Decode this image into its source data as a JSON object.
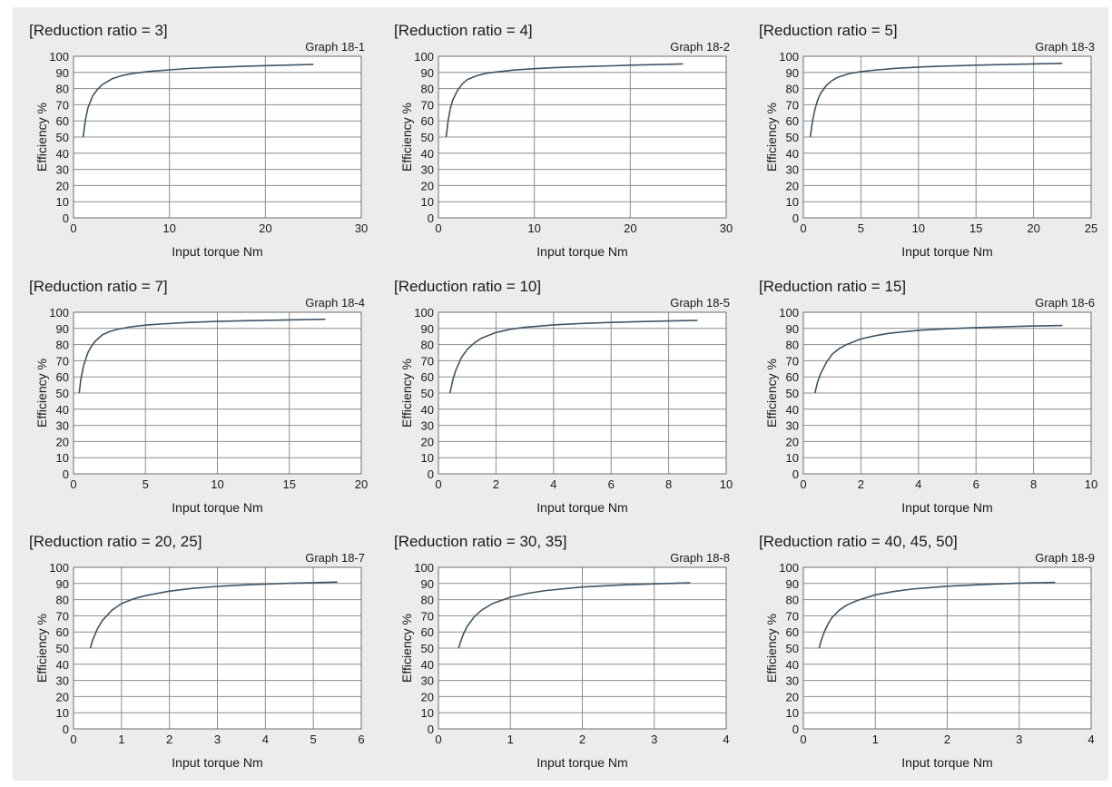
{
  "chart_data": [
    {
      "type": "line",
      "title": "[Reduction ratio = 3]",
      "graph_label": "Graph 18-1",
      "xlabel": "Input torque Nm",
      "ylabel": "Efficiency %",
      "xlim": [
        0,
        30
      ],
      "ylim": [
        0,
        100
      ],
      "x_ticks": [
        0,
        10,
        20,
        30
      ],
      "y_ticks": [
        0,
        10,
        20,
        30,
        40,
        50,
        60,
        70,
        80,
        90,
        100
      ],
      "grid": true,
      "series": [
        {
          "color": "#3e5566",
          "x": [
            1,
            1.25,
            1.5,
            2,
            2.5,
            3,
            4,
            5,
            6,
            7,
            8,
            10,
            12,
            15,
            18,
            20,
            22,
            25
          ],
          "y": [
            50,
            61,
            68,
            75.5,
            79.5,
            82.5,
            86,
            88,
            89.2,
            90,
            90.7,
            91.6,
            92.4,
            93.2,
            93.9,
            94.2,
            94.5,
            95
          ]
        }
      ]
    },
    {
      "type": "line",
      "title": "[Reduction ratio = 4]",
      "graph_label": "Graph 18-2",
      "xlabel": "Input torque Nm",
      "ylabel": "Efficiency %",
      "xlim": [
        0,
        30
      ],
      "ylim": [
        0,
        100
      ],
      "x_ticks": [
        0,
        10,
        20,
        30
      ],
      "y_ticks": [
        0,
        10,
        20,
        30,
        40,
        50,
        60,
        70,
        80,
        90,
        100
      ],
      "grid": true,
      "series": [
        {
          "color": "#3e5566",
          "x": [
            0.8,
            1,
            1.25,
            1.5,
            2,
            2.5,
            3,
            4,
            5,
            6,
            8,
            10,
            12,
            15,
            18,
            20,
            22,
            25.5
          ],
          "y": [
            50,
            60,
            68,
            73,
            79,
            83,
            85.5,
            88,
            89.5,
            90.3,
            91.5,
            92.3,
            92.9,
            93.6,
            94.1,
            94.5,
            94.8,
            95.3
          ]
        }
      ]
    },
    {
      "type": "line",
      "title": "[Reduction ratio = 5]",
      "graph_label": "Graph 18-3",
      "xlabel": "Input torque Nm",
      "ylabel": "Efficiency %",
      "xlim": [
        0,
        25
      ],
      "ylim": [
        0,
        100
      ],
      "x_ticks": [
        0,
        5,
        10,
        15,
        20,
        25
      ],
      "y_ticks": [
        0,
        10,
        20,
        30,
        40,
        50,
        60,
        70,
        80,
        90,
        100
      ],
      "grid": true,
      "series": [
        {
          "color": "#3e5566",
          "x": [
            0.6,
            0.8,
            1,
            1.25,
            1.5,
            2,
            2.5,
            3,
            4,
            5,
            6,
            8,
            10,
            12,
            15,
            18,
            20,
            22.5
          ],
          "y": [
            50,
            60,
            67,
            73,
            77,
            82,
            85,
            87,
            89.3,
            90.5,
            91.3,
            92.5,
            93.3,
            93.9,
            94.5,
            95,
            95.3,
            95.6
          ]
        }
      ]
    },
    {
      "type": "line",
      "title": "[Reduction ratio = 7]",
      "graph_label": "Graph 18-4",
      "xlabel": "Input torque Nm",
      "ylabel": "Efficiency %",
      "xlim": [
        0,
        20
      ],
      "ylim": [
        0,
        100
      ],
      "x_ticks": [
        0,
        5,
        10,
        15,
        20
      ],
      "y_ticks": [
        0,
        10,
        20,
        30,
        40,
        50,
        60,
        70,
        80,
        90,
        100
      ],
      "grid": true,
      "series": [
        {
          "color": "#3e5566",
          "x": [
            0.4,
            0.5,
            0.7,
            1,
            1.25,
            1.5,
            2,
            2.5,
            3,
            4,
            5,
            6,
            8,
            10,
            12,
            15,
            17.5
          ],
          "y": [
            50,
            58,
            67,
            75,
            79,
            82,
            86,
            88,
            89.3,
            91,
            92,
            92.7,
            93.7,
            94.3,
            94.8,
            95.3,
            95.7
          ]
        }
      ]
    },
    {
      "type": "line",
      "title": "[Reduction ratio = 10]",
      "graph_label": "Graph 18-5",
      "xlabel": "Input torque Nm",
      "ylabel": "Efficiency %",
      "xlim": [
        0,
        10
      ],
      "ylim": [
        0,
        100
      ],
      "x_ticks": [
        0,
        2,
        4,
        6,
        8,
        10
      ],
      "y_ticks": [
        0,
        10,
        20,
        30,
        40,
        50,
        60,
        70,
        80,
        90,
        100
      ],
      "grid": true,
      "series": [
        {
          "color": "#3e5566",
          "x": [
            0.4,
            0.5,
            0.6,
            0.8,
            1,
            1.25,
            1.5,
            2,
            2.5,
            3,
            4,
            5,
            6,
            7,
            8,
            9
          ],
          "y": [
            50,
            58,
            64,
            72,
            77,
            81,
            84,
            87.5,
            89.5,
            90.7,
            92.2,
            93.1,
            93.7,
            94.2,
            94.6,
            95
          ]
        }
      ]
    },
    {
      "type": "line",
      "title": "[Reduction ratio = 15]",
      "graph_label": "Graph 18-6",
      "xlabel": "Input torque Nm",
      "ylabel": "Efficiency %",
      "xlim": [
        0,
        10
      ],
      "ylim": [
        0,
        100
      ],
      "x_ticks": [
        0,
        2,
        4,
        6,
        8,
        10
      ],
      "y_ticks": [
        0,
        10,
        20,
        30,
        40,
        50,
        60,
        70,
        80,
        90,
        100
      ],
      "grid": true,
      "series": [
        {
          "color": "#3e5566",
          "x": [
            0.4,
            0.5,
            0.6,
            0.8,
            1,
            1.25,
            1.5,
            2,
            2.5,
            3,
            4,
            5,
            6,
            7,
            8,
            9
          ],
          "y": [
            50,
            57,
            62,
            69,
            74,
            77.5,
            80,
            83.5,
            85.5,
            87,
            88.8,
            89.8,
            90.5,
            91,
            91.5,
            91.8
          ]
        }
      ]
    },
    {
      "type": "line",
      "title": "[Reduction ratio = 20, 25]",
      "graph_label": "Graph 18-7",
      "xlabel": "Input torque Nm",
      "ylabel": "Efficiency %",
      "xlim": [
        0,
        6
      ],
      "ylim": [
        0,
        100
      ],
      "x_ticks": [
        0,
        1,
        2,
        3,
        4,
        5,
        6
      ],
      "y_ticks": [
        0,
        10,
        20,
        30,
        40,
        50,
        60,
        70,
        80,
        90,
        100
      ],
      "grid": true,
      "series": [
        {
          "color": "#3e5566",
          "x": [
            0.35,
            0.4,
            0.5,
            0.6,
            0.8,
            1,
            1.25,
            1.5,
            2,
            2.5,
            3,
            3.5,
            4,
            4.5,
            5,
            5.5
          ],
          "y": [
            50,
            55,
            62,
            67,
            73.5,
            77.5,
            80.5,
            82.5,
            85.3,
            87,
            88.2,
            89,
            89.6,
            90.1,
            90.5,
            90.9
          ]
        }
      ]
    },
    {
      "type": "line",
      "title": "[Reduction ratio = 30, 35]",
      "graph_label": "Graph 18-8",
      "xlabel": "Input torque Nm",
      "ylabel": "Efficiency %",
      "xlim": [
        0,
        4
      ],
      "ylim": [
        0,
        100
      ],
      "x_ticks": [
        0,
        1,
        2,
        3,
        4
      ],
      "y_ticks": [
        0,
        10,
        20,
        30,
        40,
        50,
        60,
        70,
        80,
        90,
        100
      ],
      "grid": true,
      "series": [
        {
          "color": "#3e5566",
          "x": [
            0.28,
            0.3,
            0.35,
            0.4,
            0.5,
            0.6,
            0.75,
            1,
            1.25,
            1.5,
            2,
            2.5,
            3,
            3.5
          ],
          "y": [
            50,
            53,
            59,
            63.5,
            69.5,
            73.5,
            77.5,
            81.5,
            84,
            85.7,
            87.8,
            89,
            89.8,
            90.4
          ]
        }
      ]
    },
    {
      "type": "line",
      "title": "[Reduction ratio = 40, 45, 50]",
      "graph_label": "Graph 18-9",
      "xlabel": "Input torque Nm",
      "ylabel": "Efficiency %",
      "xlim": [
        0,
        4
      ],
      "ylim": [
        0,
        100
      ],
      "x_ticks": [
        0,
        1,
        2,
        3,
        4
      ],
      "y_ticks": [
        0,
        10,
        20,
        30,
        40,
        50,
        60,
        70,
        80,
        90,
        100
      ],
      "grid": true,
      "series": [
        {
          "color": "#3e5566",
          "x": [
            0.22,
            0.25,
            0.3,
            0.35,
            0.4,
            0.5,
            0.6,
            0.75,
            1,
            1.25,
            1.5,
            2,
            2.5,
            3,
            3.5
          ],
          "y": [
            50,
            55,
            61,
            65.5,
            69,
            73.5,
            76.5,
            79.5,
            83,
            85,
            86.5,
            88.3,
            89.4,
            90.2,
            90.7
          ]
        }
      ]
    }
  ]
}
